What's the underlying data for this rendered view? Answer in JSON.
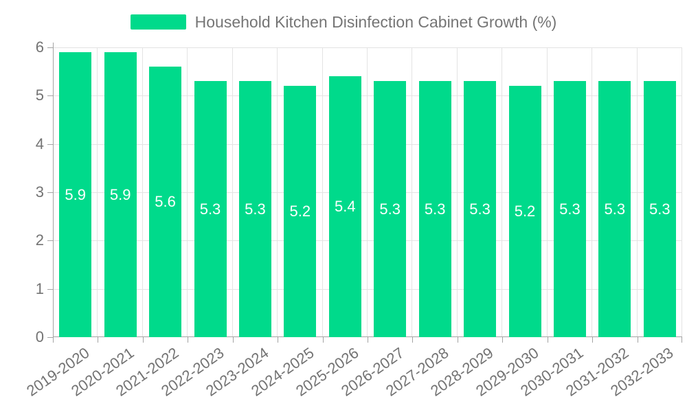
{
  "chart_data": {
    "type": "bar",
    "title": "Household Kitchen Disinfection Cabinet Growth (%)",
    "categories": [
      "2019-2020",
      "2020-2021",
      "2021-2022",
      "2022-2023",
      "2023-2024",
      "2024-2025",
      "2025-2026",
      "2026-2027",
      "2027-2028",
      "2028-2029",
      "2029-2030",
      "2030-2031",
      "2031-2032",
      "2032-2033"
    ],
    "values": [
      5.9,
      5.9,
      5.6,
      5.3,
      5.3,
      5.2,
      5.4,
      5.3,
      5.3,
      5.3,
      5.2,
      5.3,
      5.3,
      5.3
    ],
    "value_labels": [
      "5.9",
      "5.9",
      "5.6",
      "5.3",
      "5.3",
      "5.2",
      "5.4",
      "5.3",
      "5.3",
      "5.3",
      "5.2",
      "5.3",
      "5.3",
      "5.3"
    ],
    "xlabel": "",
    "ylabel": "",
    "ylim": [
      0,
      6
    ],
    "yticks": [
      "0",
      "1",
      "2",
      "3",
      "4",
      "5",
      "6"
    ],
    "grid": true,
    "value_label_position": "inside-center",
    "x_tick_label_rotation_deg": -35,
    "legend": {
      "label": "Household Kitchen Disinfection Cabinet Growth (%)",
      "position": "top-center"
    },
    "colors": {
      "bar": "#00da8b",
      "value_label_text": "#ffffff",
      "grid_line": "#e3e3e3",
      "axis_line": "#a3a3a3",
      "tick_label_text": "#737373",
      "legend_text": "#757575",
      "background": "#ffffff"
    }
  }
}
